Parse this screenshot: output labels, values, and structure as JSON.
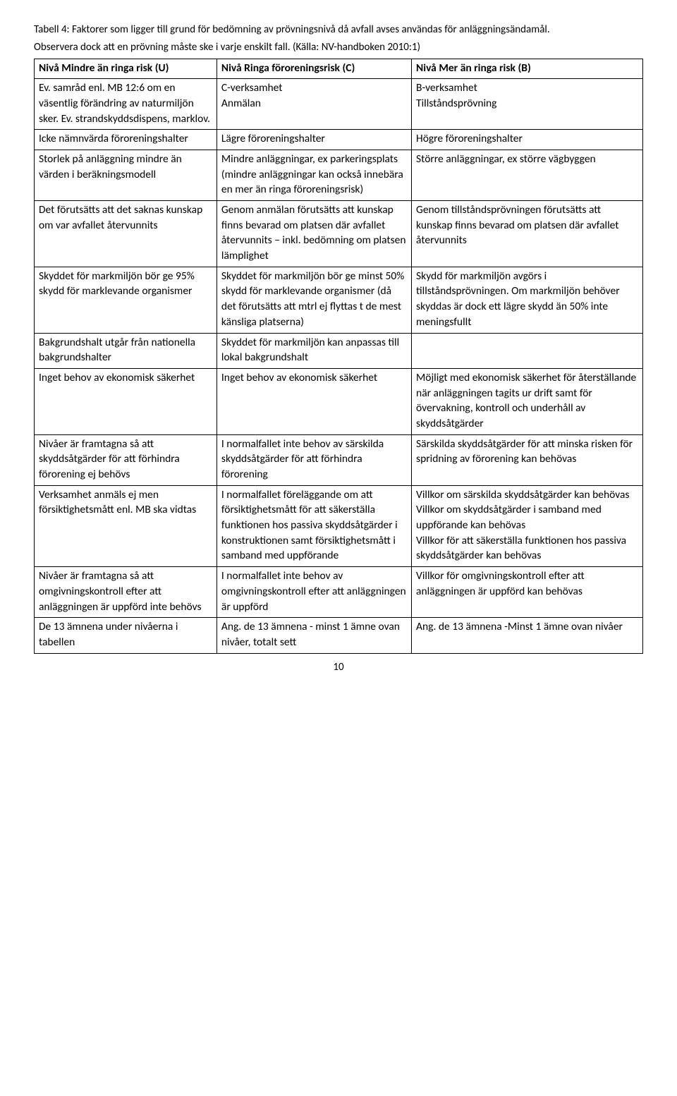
{
  "caption_line1": "Tabell 4: Faktorer som ligger till grund för bedömning av prövningsnivå då avfall avses användas för anläggningsändamål.",
  "caption_line2": "Observera dock att en prövning måste ske i varje enskilt fall. (Källa: NV-handboken 2010:1)",
  "page_number": "10",
  "headers": {
    "u": "Nivå Mindre än ringa risk (U)",
    "c": "Nivå Ringa föroreningsrisk (C)",
    "b": "Nivå Mer än ringa risk (B)"
  },
  "rows": [
    {
      "u": "Ev. samråd enl. MB 12:6 om en väsentlig förändring av naturmiljön sker. Ev. strandskyddsdispens, marklov.",
      "c": "C-verksamhet\nAnmälan",
      "b": "B-verksamhet\nTillståndsprövning"
    },
    {
      "u": "Icke nämnvärda föroreningshalter",
      "c": "Lägre föroreningshalter",
      "b": "Högre föroreningshalter"
    },
    {
      "u": "Storlek på anläggning mindre än värden i beräkningsmodell",
      "c": "Mindre anläggningar, ex parkeringsplats (mindre anläggningar kan också innebära en mer än ringa föroreningsrisk)",
      "b": "Större anläggningar, ex större vägbyggen"
    },
    {
      "u": "Det förutsätts att det saknas kunskap om var avfallet återvunnits",
      "c": "Genom anmälan förutsätts att kunskap finns bevarad om platsen där avfallet återvunnits – inkl. bedömning om platsen lämplighet",
      "b": "Genom tillståndsprövningen förutsätts att kunskap finns bevarad om platsen där avfallet återvunnits"
    },
    {
      "u": "Skyddet för markmiljön bör ge 95% skydd för marklevande organismer",
      "c": "Skyddet för markmiljön bör ge minst 50% skydd för marklevande organismer (då det förutsätts att mtrl ej flyttas t de mest känsliga platserna)",
      "b": "Skydd för markmiljön avgörs i tillståndsprövningen. Om markmiljön behöver skyddas är dock ett lägre skydd än 50% inte meningsfullt"
    },
    {
      "u": "Bakgrundshalt utgår från nationella bakgrundshalter",
      "c": "Skyddet för markmiljön kan anpassas till lokal bakgrundshalt",
      "b": ""
    },
    {
      "u": "Inget behov av ekonomisk säkerhet",
      "c": "Inget behov av ekonomisk säkerhet",
      "b": "Möjligt med ekonomisk säkerhet för återställande när anläggningen tagits ur drift samt för övervakning, kontroll och underhåll av skyddsåtgärder"
    },
    {
      "u": "Nivåer är framtagna så att skyddsåtgärder för att förhindra förorening ej behövs",
      "c": "I normalfallet inte behov av särskilda skyddsåtgärder för att förhindra förorening",
      "b": "Särskilda skyddsåtgärder för att minska risken för spridning av förorening kan behövas"
    },
    {
      "u": "Verksamhet anmäls ej men försiktighetsmått enl. MB ska vidtas",
      "c": "I normalfallet föreläggande om att försiktighetsmått för att säkerställa funktionen hos passiva skyddsåtgärder i konstruktionen samt försiktighetsmått i samband med uppförande",
      "b": "Villkor om särskilda skyddsåtgärder kan behövas\nVillkor om skyddsåtgärder i samband med uppförande kan behövas\nVillkor för att säkerställa funktionen hos passiva skyddsåtgärder kan behövas"
    },
    {
      "u": "Nivåer är framtagna så att omgivningskontroll efter att anläggningen är uppförd inte behövs",
      "c": "I normalfallet inte behov av omgivningskontroll efter att anläggningen är uppförd",
      "b": "Villkor för omgivningskontroll efter att anläggningen är uppförd kan behövas"
    },
    {
      "u": "De 13 ämnena under nivåerna i tabellen",
      "c": "Ang. de 13 ämnena - minst 1 ämne ovan nivåer, totalt sett",
      "b": "Ang. de 13 ämnena -Minst 1 ämne ovan nivåer"
    }
  ]
}
